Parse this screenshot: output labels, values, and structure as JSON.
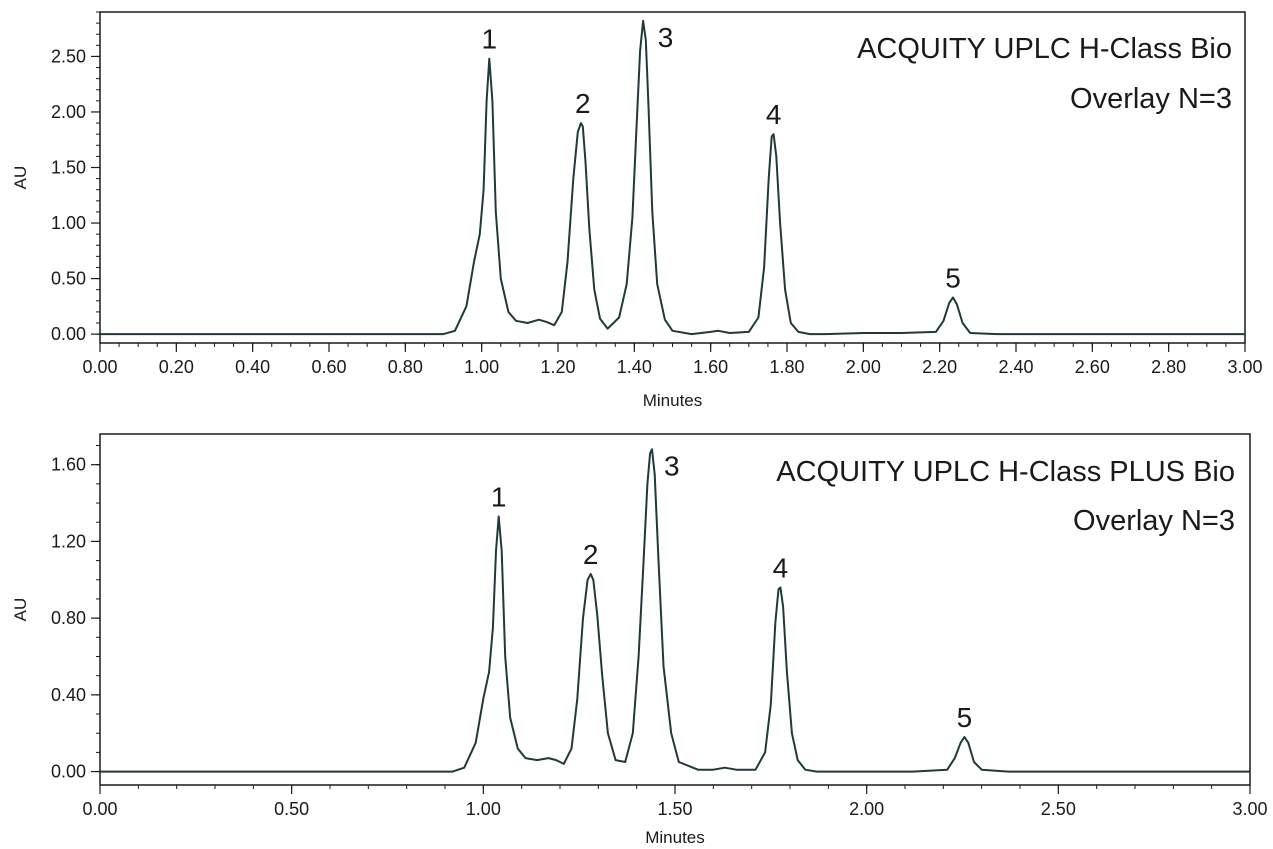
{
  "chart_data": [
    {
      "type": "line",
      "xlabel": "Minutes",
      "ylabel": "AU",
      "xlim": [
        0,
        3.0
      ],
      "ylim": [
        -0.08,
        2.9
      ],
      "xticks": [
        "0.00",
        "0.20",
        "0.40",
        "0.60",
        "0.80",
        "1.00",
        "1.20",
        "1.40",
        "1.60",
        "1.80",
        "2.00",
        "2.20",
        "2.40",
        "2.60",
        "2.80",
        "3.00"
      ],
      "yticks": [
        "0.00",
        "0.50",
        "1.00",
        "1.50",
        "2.00",
        "2.50"
      ],
      "annotation": [
        "ACQUITY UPLC H-Class Bio",
        "Overlay N=3"
      ],
      "grid": false,
      "line_color": "#1f3a3a",
      "peaks": [
        {
          "label": "1",
          "x": 1.02,
          "y": 2.48
        },
        {
          "label": "2",
          "x": 1.265,
          "y": 1.9
        },
        {
          "label": "3",
          "x": 1.43,
          "y": 2.82
        },
        {
          "label": "4",
          "x": 1.765,
          "y": 1.8
        },
        {
          "label": "5",
          "x": 2.235,
          "y": 0.33
        }
      ],
      "series": [
        {
          "x": [
            0.0,
            0.9,
            0.93,
            0.96,
            0.98,
            0.995,
            1.005,
            1.013,
            1.02,
            1.028,
            1.037,
            1.05,
            1.07,
            1.09,
            1.12,
            1.15,
            1.17,
            1.19,
            1.21,
            1.225,
            1.24,
            1.252,
            1.26,
            1.265,
            1.272,
            1.282,
            1.295,
            1.31,
            1.33,
            1.36,
            1.38,
            1.395,
            1.405,
            1.415,
            1.423,
            1.43,
            1.437,
            1.447,
            1.46,
            1.48,
            1.5,
            1.55,
            1.6,
            1.62,
            1.65,
            1.7,
            1.725,
            1.74,
            1.752,
            1.76,
            1.765,
            1.772,
            1.782,
            1.795,
            1.81,
            1.83,
            1.86,
            1.9,
            2.0,
            2.1,
            2.19,
            2.21,
            2.225,
            2.235,
            2.245,
            2.26,
            2.28,
            2.35,
            3.0
          ],
          "y": [
            0.0,
            0.0,
            0.03,
            0.25,
            0.65,
            0.9,
            1.3,
            2.1,
            2.48,
            2.1,
            1.1,
            0.5,
            0.2,
            0.12,
            0.1,
            0.13,
            0.11,
            0.08,
            0.2,
            0.65,
            1.4,
            1.82,
            1.9,
            1.87,
            1.55,
            0.95,
            0.4,
            0.14,
            0.05,
            0.15,
            0.45,
            1.05,
            1.8,
            2.55,
            2.82,
            2.65,
            2.05,
            1.1,
            0.45,
            0.13,
            0.03,
            0.0,
            0.02,
            0.03,
            0.01,
            0.02,
            0.15,
            0.6,
            1.4,
            1.78,
            1.8,
            1.6,
            1.0,
            0.4,
            0.1,
            0.02,
            0.0,
            0.0,
            0.01,
            0.01,
            0.02,
            0.12,
            0.28,
            0.33,
            0.27,
            0.1,
            0.01,
            0.0,
            0.0
          ]
        }
      ]
    },
    {
      "type": "line",
      "xlabel": "Minutes",
      "ylabel": "AU",
      "xlim": [
        0,
        3.0
      ],
      "ylim": [
        -0.07,
        1.76
      ],
      "xticks": [
        "0.00",
        "0.50",
        "1.00",
        "1.50",
        "2.00",
        "2.50",
        "3.00"
      ],
      "yticks": [
        "0.00",
        "0.40",
        "0.80",
        "1.20",
        "1.60"
      ],
      "annotation": [
        "ACQUITY UPLC H-Class PLUS Bio",
        "Overlay N=3"
      ],
      "grid": false,
      "line_color": "#1f3a3a",
      "peaks": [
        {
          "label": "1",
          "x": 1.04,
          "y": 1.33
        },
        {
          "label": "2",
          "x": 1.28,
          "y": 1.03
        },
        {
          "label": "3",
          "x": 1.44,
          "y": 1.68
        },
        {
          "label": "4",
          "x": 1.775,
          "y": 0.96
        },
        {
          "label": "5",
          "x": 2.255,
          "y": 0.18
        }
      ],
      "series": [
        {
          "x": [
            0.0,
            0.92,
            0.95,
            0.98,
            1.0,
            1.015,
            1.025,
            1.033,
            1.04,
            1.048,
            1.057,
            1.07,
            1.09,
            1.11,
            1.14,
            1.17,
            1.19,
            1.21,
            1.23,
            1.245,
            1.26,
            1.272,
            1.28,
            1.287,
            1.297,
            1.31,
            1.325,
            1.345,
            1.37,
            1.39,
            1.405,
            1.418,
            1.428,
            1.435,
            1.44,
            1.447,
            1.457,
            1.47,
            1.49,
            1.51,
            1.56,
            1.6,
            1.63,
            1.66,
            1.71,
            1.735,
            1.75,
            1.762,
            1.77,
            1.775,
            1.782,
            1.792,
            1.805,
            1.82,
            1.84,
            1.87,
            1.92,
            2.02,
            2.12,
            2.21,
            2.23,
            2.245,
            2.255,
            2.265,
            2.28,
            2.3,
            2.37,
            3.0
          ],
          "y": [
            0.0,
            0.0,
            0.02,
            0.15,
            0.38,
            0.52,
            0.75,
            1.15,
            1.33,
            1.15,
            0.6,
            0.28,
            0.12,
            0.07,
            0.06,
            0.07,
            0.06,
            0.04,
            0.12,
            0.38,
            0.8,
            1.0,
            1.03,
            1.0,
            0.82,
            0.5,
            0.2,
            0.06,
            0.05,
            0.2,
            0.6,
            1.1,
            1.5,
            1.66,
            1.68,
            1.55,
            1.1,
            0.55,
            0.2,
            0.05,
            0.01,
            0.01,
            0.02,
            0.01,
            0.01,
            0.1,
            0.35,
            0.78,
            0.95,
            0.96,
            0.86,
            0.52,
            0.2,
            0.06,
            0.01,
            0.0,
            0.0,
            0.0,
            0.0,
            0.01,
            0.07,
            0.15,
            0.18,
            0.15,
            0.05,
            0.01,
            0.0,
            0.0
          ]
        }
      ]
    }
  ]
}
